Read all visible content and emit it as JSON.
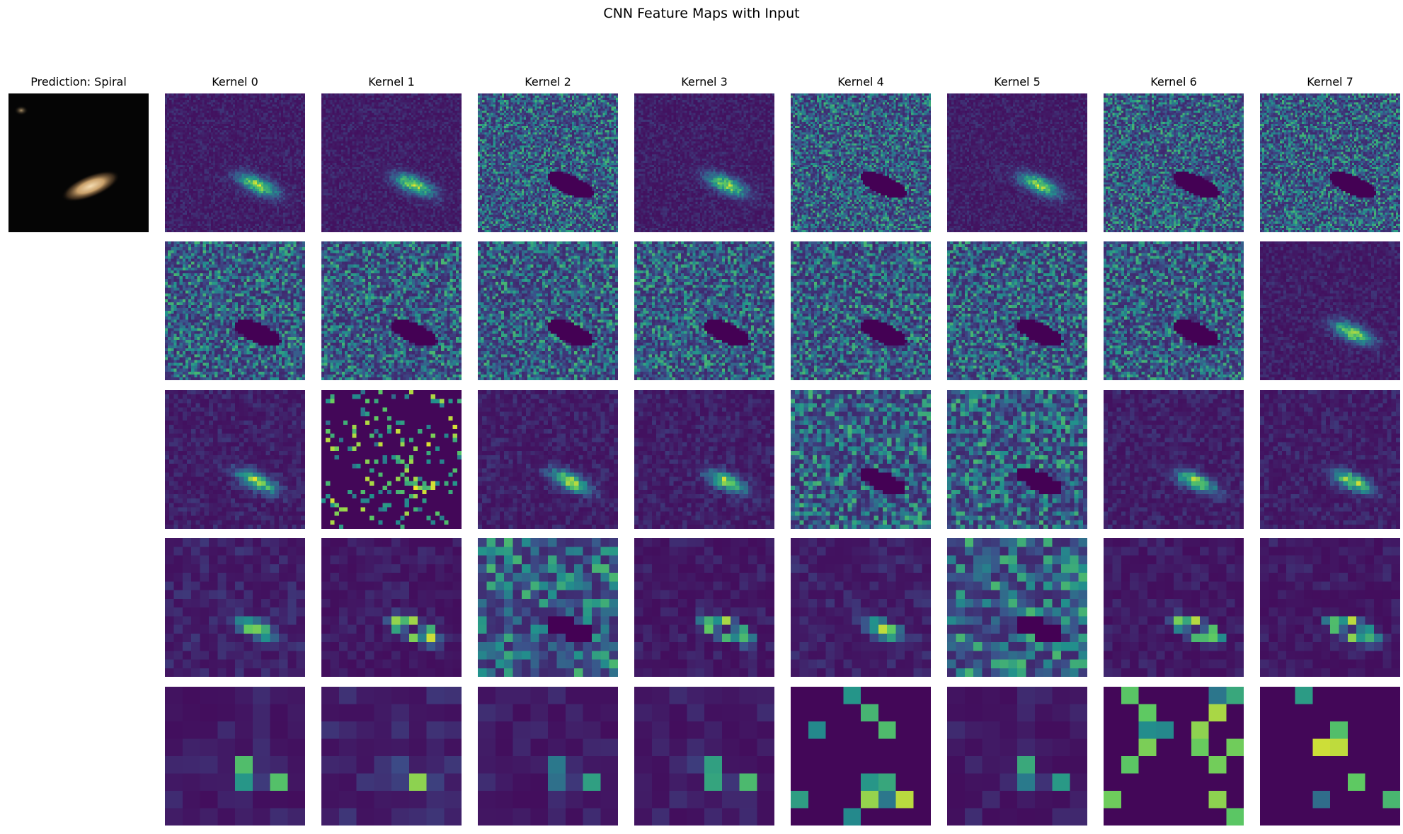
{
  "figure": {
    "title": "CNN Feature Maps with Input",
    "input_title": "Prediction: Spiral",
    "kernel_titles": [
      "Kernel 0",
      "Kernel 1",
      "Kernel 2",
      "Kernel 3",
      "Kernel 4",
      "Kernel 5",
      "Kernel 6",
      "Kernel 7"
    ],
    "rows": 5,
    "kernels_per_row": 8
  },
  "colors": {
    "viridis_low": "#440154",
    "viridis_mid": "#21918c",
    "viridis_high": "#fde725",
    "background": "#ffffff"
  },
  "chart_data": {
    "type": "heatmap",
    "colormap": "viridis",
    "layers": [
      {
        "resolution": 64,
        "maps": [
          {
            "kernel": 0,
            "pattern": "bright"
          },
          {
            "kernel": 1,
            "pattern": "bright"
          },
          {
            "kernel": 2,
            "pattern": "inverse"
          },
          {
            "kernel": 3,
            "pattern": "bright"
          },
          {
            "kernel": 4,
            "pattern": "inverse"
          },
          {
            "kernel": 5,
            "pattern": "bright"
          },
          {
            "kernel": 6,
            "pattern": "inverse"
          },
          {
            "kernel": 7,
            "pattern": "inverse"
          }
        ]
      },
      {
        "resolution": 48,
        "maps": [
          {
            "kernel": 0,
            "pattern": "inverse"
          },
          {
            "kernel": 1,
            "pattern": "inverse"
          },
          {
            "kernel": 2,
            "pattern": "inverse"
          },
          {
            "kernel": 3,
            "pattern": "inverse"
          },
          {
            "kernel": 4,
            "pattern": "inverse"
          },
          {
            "kernel": 5,
            "pattern": "inverse"
          },
          {
            "kernel": 6,
            "pattern": "inverse"
          },
          {
            "kernel": 7,
            "pattern": "bright"
          }
        ]
      },
      {
        "resolution": 32,
        "maps": [
          {
            "kernel": 0,
            "pattern": "bright"
          },
          {
            "kernel": 1,
            "pattern": "sparse"
          },
          {
            "kernel": 2,
            "pattern": "bright"
          },
          {
            "kernel": 3,
            "pattern": "bright"
          },
          {
            "kernel": 4,
            "pattern": "inverse"
          },
          {
            "kernel": 5,
            "pattern": "inverse"
          },
          {
            "kernel": 6,
            "pattern": "bright"
          },
          {
            "kernel": 7,
            "pattern": "bright"
          }
        ]
      },
      {
        "resolution": 16,
        "maps": [
          {
            "kernel": 0,
            "pattern": "bright"
          },
          {
            "kernel": 1,
            "pattern": "ring"
          },
          {
            "kernel": 2,
            "pattern": "inverse"
          },
          {
            "kernel": 3,
            "pattern": "ring"
          },
          {
            "kernel": 4,
            "pattern": "bright"
          },
          {
            "kernel": 5,
            "pattern": "inverse"
          },
          {
            "kernel": 6,
            "pattern": "ring"
          },
          {
            "kernel": 7,
            "pattern": "ring"
          }
        ]
      },
      {
        "resolution": 8,
        "maps": [
          {
            "kernel": 0,
            "pattern": "ring"
          },
          {
            "kernel": 1,
            "pattern": "bright"
          },
          {
            "kernel": 2,
            "pattern": "ring"
          },
          {
            "kernel": 3,
            "pattern": "ring"
          },
          {
            "kernel": 4,
            "pattern": "sparse"
          },
          {
            "kernel": 5,
            "pattern": "ring"
          },
          {
            "kernel": 6,
            "pattern": "sparse"
          },
          {
            "kernel": 7,
            "pattern": "sparse"
          }
        ]
      }
    ]
  }
}
